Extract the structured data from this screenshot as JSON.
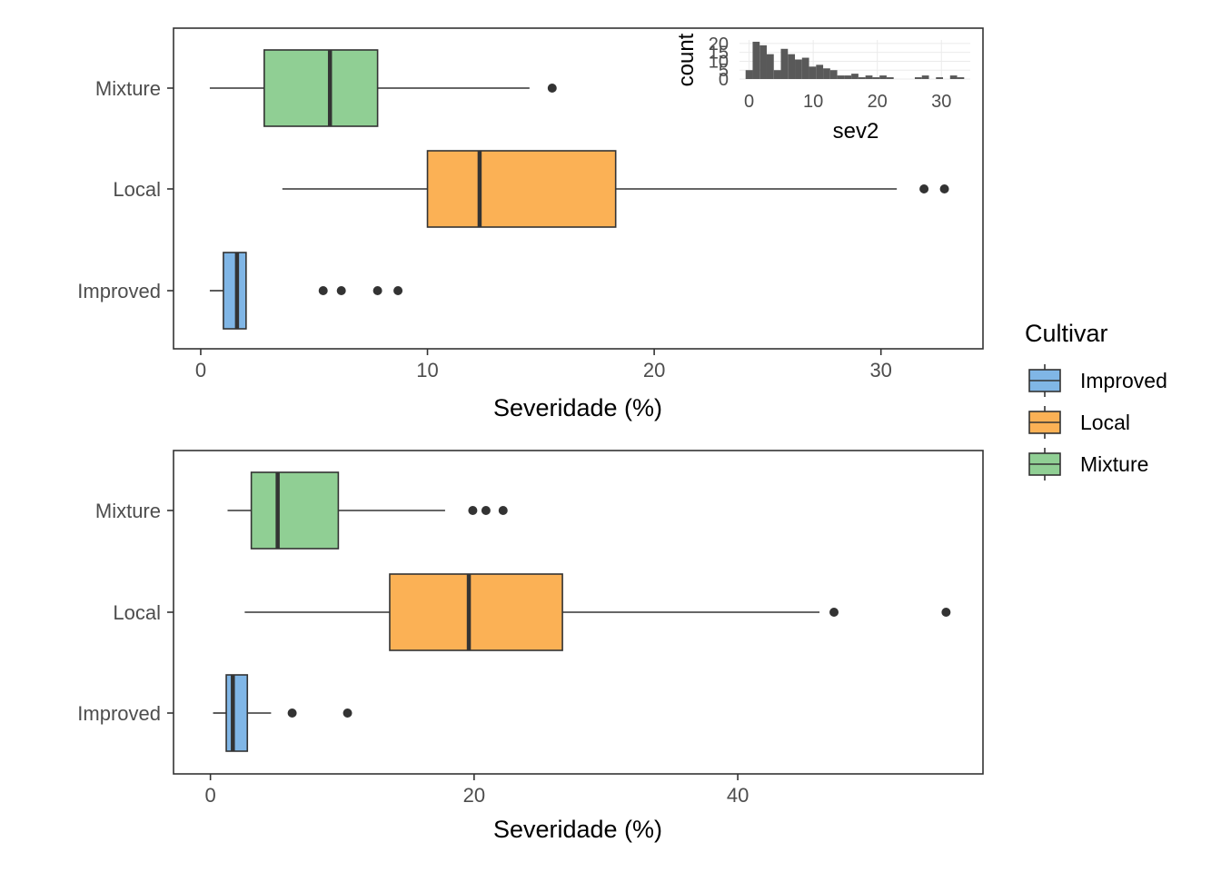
{
  "chart_data": [
    {
      "type": "boxplot",
      "orientation": "horizontal",
      "title": "",
      "xlabel": "Severidade (%)",
      "ylabel": "",
      "xlim": [
        -1.2,
        34.5
      ],
      "x_ticks": [
        0,
        10,
        20,
        30
      ],
      "categories": [
        "Improved",
        "Local",
        "Mixture"
      ],
      "boxes": [
        {
          "category": "Improved",
          "whisker_low": 0.4,
          "q1": 1.0,
          "median": 1.6,
          "q3": 2.0,
          "whisker_high": 2.0,
          "outliers": [
            5.4,
            6.2,
            7.8,
            8.7
          ]
        },
        {
          "category": "Local",
          "whisker_low": 3.6,
          "q1": 10.0,
          "median": 12.3,
          "q3": 18.3,
          "whisker_high": 30.7,
          "outliers": [
            31.9,
            32.8
          ]
        },
        {
          "category": "Mixture",
          "whisker_low": 0.4,
          "q1": 2.8,
          "median": 5.7,
          "q3": 7.8,
          "whisker_high": 14.5,
          "outliers": [
            15.5
          ]
        }
      ],
      "grid": false
    },
    {
      "type": "boxplot",
      "orientation": "horizontal",
      "title": "",
      "xlabel": "Severidade (%)",
      "ylabel": "",
      "xlim": [
        -2.8,
        58.6
      ],
      "x_ticks": [
        0,
        20,
        40
      ],
      "categories": [
        "Improved",
        "Local",
        "Mixture"
      ],
      "boxes": [
        {
          "category": "Improved",
          "whisker_low": 0.2,
          "q1": 1.2,
          "median": 1.7,
          "q3": 2.8,
          "whisker_high": 4.6,
          "outliers": [
            6.2,
            10.4
          ]
        },
        {
          "category": "Local",
          "whisker_low": 2.6,
          "q1": 13.6,
          "median": 19.6,
          "q3": 26.7,
          "whisker_high": 46.2,
          "outliers": [
            47.3,
            55.8
          ]
        },
        {
          "category": "Mixture",
          "whisker_low": 1.3,
          "q1": 3.1,
          "median": 5.1,
          "q3": 9.7,
          "whisker_high": 17.8,
          "outliers": [
            19.9,
            20.9,
            22.2
          ]
        }
      ],
      "grid": false
    },
    {
      "type": "histogram",
      "title": "",
      "xlabel": "sev2",
      "ylabel": "count",
      "xlim": [
        -1.5,
        34.5
      ],
      "ylim": [
        0,
        22
      ],
      "x_ticks": [
        0,
        10,
        20,
        30
      ],
      "y_ticks": [
        0,
        5,
        10,
        15,
        20
      ],
      "bin_width": 1.1,
      "bins": [
        {
          "x": 0.0,
          "count": 5
        },
        {
          "x": 1.1,
          "count": 21
        },
        {
          "x": 2.2,
          "count": 19
        },
        {
          "x": 3.3,
          "count": 14
        },
        {
          "x": 4.4,
          "count": 5
        },
        {
          "x": 5.5,
          "count": 17
        },
        {
          "x": 6.6,
          "count": 14
        },
        {
          "x": 7.7,
          "count": 11
        },
        {
          "x": 8.8,
          "count": 12
        },
        {
          "x": 9.9,
          "count": 7
        },
        {
          "x": 11.0,
          "count": 8
        },
        {
          "x": 12.1,
          "count": 6
        },
        {
          "x": 13.2,
          "count": 5
        },
        {
          "x": 14.3,
          "count": 2
        },
        {
          "x": 15.4,
          "count": 2
        },
        {
          "x": 16.5,
          "count": 3
        },
        {
          "x": 17.6,
          "count": 1
        },
        {
          "x": 18.7,
          "count": 2
        },
        {
          "x": 19.8,
          "count": 1
        },
        {
          "x": 20.9,
          "count": 2
        },
        {
          "x": 22.0,
          "count": 1
        },
        {
          "x": 23.1,
          "count": 0
        },
        {
          "x": 24.2,
          "count": 0
        },
        {
          "x": 25.3,
          "count": 0
        },
        {
          "x": 26.4,
          "count": 1
        },
        {
          "x": 27.5,
          "count": 2
        },
        {
          "x": 28.6,
          "count": 0
        },
        {
          "x": 29.7,
          "count": 1
        },
        {
          "x": 30.8,
          "count": 0
        },
        {
          "x": 31.9,
          "count": 2
        },
        {
          "x": 33.0,
          "count": 1
        }
      ],
      "grid": true,
      "bar_color": "#595959"
    }
  ],
  "legend": {
    "title": "Cultivar",
    "placement": "right",
    "items": [
      {
        "label": "Improved",
        "color": "#80b6e6"
      },
      {
        "label": "Local",
        "color": "#fbb155"
      },
      {
        "label": "Mixture",
        "color": "#90cf94"
      }
    ]
  },
  "colors": {
    "Improved": "#80b6e6",
    "Local": "#fbb155",
    "Mixture": "#90cf94",
    "outline": "#333333",
    "text": "#4d4d4d"
  }
}
